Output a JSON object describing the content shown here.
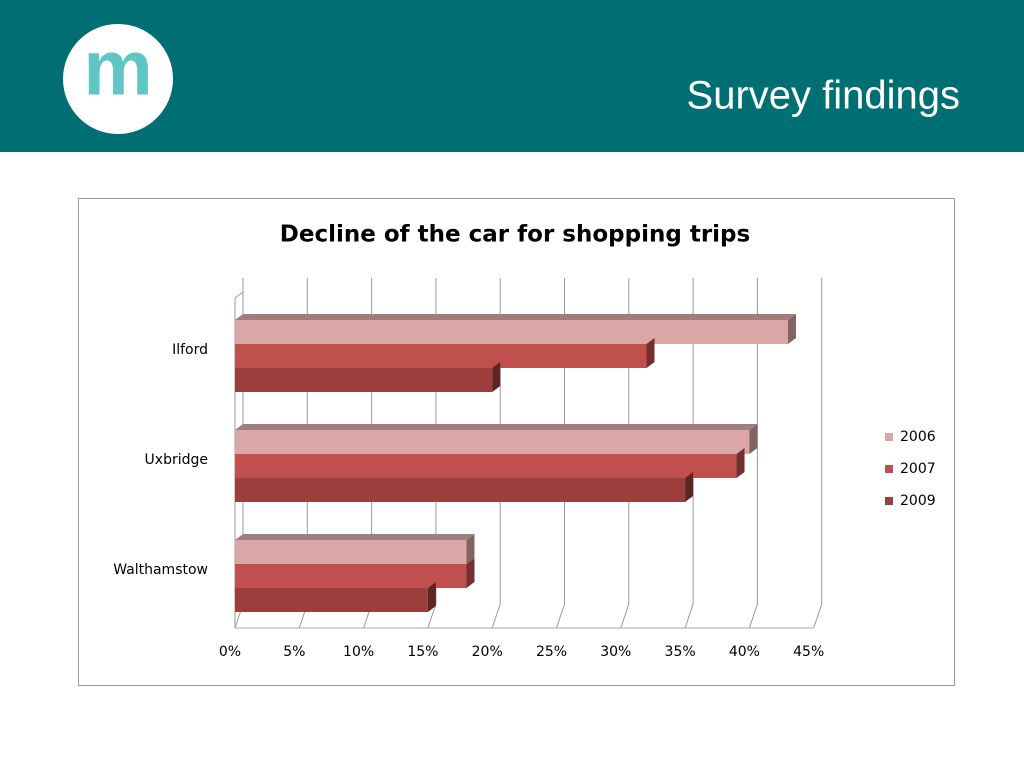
{
  "header": {
    "logo": "m",
    "title": "Survey findings"
  },
  "chart_data": {
    "type": "bar",
    "orientation": "horizontal",
    "style_3d": true,
    "title": "Decline of the car for shopping trips",
    "categories": [
      "Ilford",
      "Uxbridge",
      "Walthamstow"
    ],
    "series": [
      {
        "name": "2006",
        "color": "#d9a7a6",
        "values": [
          43,
          40,
          18
        ]
      },
      {
        "name": "2007",
        "color": "#c0504d",
        "values": [
          32,
          39,
          18
        ]
      },
      {
        "name": "2009",
        "color": "#9b3e3c",
        "values": [
          20,
          35,
          15
        ]
      }
    ],
    "xlim": [
      0,
      45
    ],
    "xticks": [
      {
        "value": 0,
        "label": "0%"
      },
      {
        "value": 5,
        "label": "5%"
      },
      {
        "value": 10,
        "label": "10%"
      },
      {
        "value": 15,
        "label": "15%"
      },
      {
        "value": 20,
        "label": "20%"
      },
      {
        "value": 25,
        "label": "25%"
      },
      {
        "value": 30,
        "label": "30%"
      },
      {
        "value": 35,
        "label": "35%"
      },
      {
        "value": 40,
        "label": "40%"
      },
      {
        "value": 45,
        "label": "45%"
      }
    ],
    "grid": true,
    "legend": "right"
  }
}
